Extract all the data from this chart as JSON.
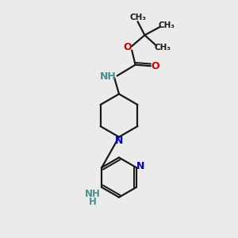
{
  "bg_color": "#ebebeb",
  "bond_color": "#1a1a1a",
  "n_color": "#0000cc",
  "o_color": "#cc0000",
  "nh_color": "#4a9090",
  "line_width": 1.6,
  "figsize": [
    3.0,
    3.0
  ],
  "dpi": 100,
  "xlim": [
    0,
    10
  ],
  "ylim": [
    0,
    10
  ]
}
